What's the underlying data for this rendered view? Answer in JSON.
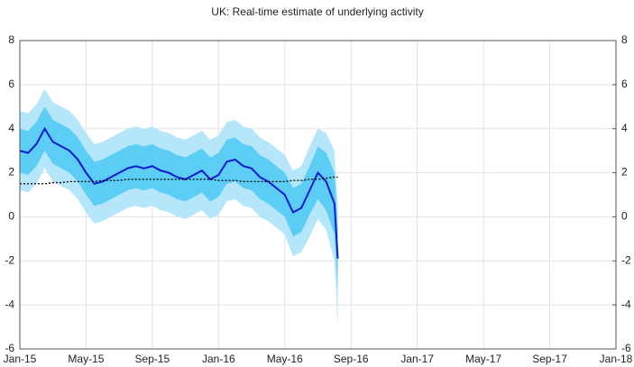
{
  "chart_data": {
    "type": "line",
    "title": "UK: Real-time estimate of underlying activity",
    "x": [
      0,
      0.5,
      1,
      1.5,
      2,
      2.5,
      3,
      3.5,
      4,
      4.5,
      5,
      5.5,
      6,
      6.5,
      7,
      7.5,
      8,
      8.5,
      9,
      9.5,
      10,
      10.5,
      11,
      11.5,
      12,
      12.5,
      13,
      13.5,
      14,
      14.5,
      15,
      15.5,
      16,
      16.5,
      17,
      17.5,
      18,
      18.5,
      19,
      19.2
    ],
    "xlim": [
      0,
      36
    ],
    "xticks": [
      {
        "value": 0,
        "label": "Jan-15"
      },
      {
        "value": 4,
        "label": "May-15"
      },
      {
        "value": 8,
        "label": "Sep-15"
      },
      {
        "value": 12,
        "label": "Jan-16"
      },
      {
        "value": 16,
        "label": "May-16"
      },
      {
        "value": 20,
        "label": "Sep-16"
      },
      {
        "value": 24,
        "label": "Jan-17"
      },
      {
        "value": 28,
        "label": "May-17"
      },
      {
        "value": 32,
        "label": "Sep-17"
      },
      {
        "value": 36,
        "label": "Jan-18"
      }
    ],
    "ylim": [
      -6,
      8
    ],
    "yticks": [
      -6,
      -4,
      -2,
      0,
      2,
      4,
      6,
      8
    ],
    "y2lim": [
      -6,
      8
    ],
    "y2ticks": [
      -6,
      -4,
      -2,
      0,
      2,
      4,
      6,
      8
    ],
    "grid": true,
    "bands": [
      {
        "color": "#b5e6fa",
        "upper": [
          4.8,
          4.7,
          5.1,
          5.8,
          5.2,
          5.0,
          4.8,
          4.4,
          3.8,
          3.3,
          3.4,
          3.6,
          3.8,
          4.0,
          4.1,
          4.0,
          4.1,
          3.9,
          3.8,
          3.6,
          3.5,
          3.7,
          3.9,
          3.5,
          3.7,
          4.3,
          4.4,
          4.1,
          4.0,
          3.6,
          3.4,
          3.1,
          2.8,
          2.1,
          2.3,
          3.2,
          4.0,
          3.8,
          3.0,
          0.5
        ],
        "lower": [
          1.2,
          1.1,
          1.5,
          2.2,
          1.6,
          1.4,
          1.2,
          0.8,
          0.2,
          -0.3,
          -0.2,
          0.0,
          0.2,
          0.4,
          0.5,
          0.4,
          0.5,
          0.3,
          0.2,
          0.0,
          -0.1,
          0.1,
          0.3,
          -0.1,
          0.1,
          0.7,
          0.8,
          0.5,
          0.4,
          0.0,
          -0.2,
          -0.5,
          -0.8,
          -1.8,
          -1.6,
          -0.9,
          -0.1,
          -0.6,
          -2.0,
          -4.9
        ]
      },
      {
        "color": "#5ccdf5",
        "upper": [
          4.0,
          3.9,
          4.3,
          5.0,
          4.4,
          4.2,
          4.0,
          3.6,
          3.0,
          2.5,
          2.6,
          2.8,
          3.0,
          3.2,
          3.3,
          3.2,
          3.3,
          3.1,
          3.0,
          2.8,
          2.7,
          2.9,
          3.1,
          2.7,
          2.9,
          3.5,
          3.6,
          3.3,
          3.2,
          2.8,
          2.6,
          2.3,
          2.0,
          1.3,
          1.5,
          2.3,
          3.2,
          2.9,
          2.0,
          -0.5
        ],
        "lower": [
          2.0,
          1.9,
          2.3,
          3.0,
          2.4,
          2.2,
          2.0,
          1.6,
          1.0,
          0.5,
          0.6,
          0.8,
          1.0,
          1.2,
          1.3,
          1.2,
          1.3,
          1.1,
          1.0,
          0.8,
          0.7,
          0.9,
          1.1,
          0.7,
          0.9,
          1.5,
          1.6,
          1.3,
          1.2,
          0.8,
          0.6,
          0.3,
          0.0,
          -0.9,
          -0.7,
          0.1,
          0.8,
          0.3,
          -0.8,
          -3.3
        ]
      }
    ],
    "series": [
      {
        "color": "#0a1ad1",
        "style": "solid",
        "values": [
          3.0,
          2.9,
          3.3,
          4.0,
          3.4,
          3.2,
          3.0,
          2.6,
          2.0,
          1.5,
          1.6,
          1.8,
          2.0,
          2.2,
          2.3,
          2.2,
          2.3,
          2.1,
          2.0,
          1.8,
          1.7,
          1.9,
          2.1,
          1.7,
          1.9,
          2.5,
          2.6,
          2.3,
          2.2,
          1.8,
          1.6,
          1.3,
          1.0,
          0.2,
          0.4,
          1.2,
          2.0,
          1.6,
          0.6,
          -1.9
        ]
      },
      {
        "color": "#000000",
        "style": "dotted",
        "values": [
          1.5,
          1.5,
          1.5,
          1.5,
          1.55,
          1.55,
          1.6,
          1.6,
          1.6,
          1.6,
          1.65,
          1.65,
          1.65,
          1.7,
          1.7,
          1.7,
          1.7,
          1.7,
          1.7,
          1.7,
          1.7,
          1.7,
          1.7,
          1.7,
          1.65,
          1.65,
          1.65,
          1.6,
          1.6,
          1.6,
          1.6,
          1.6,
          1.6,
          1.65,
          1.65,
          1.7,
          1.7,
          1.75,
          1.8,
          1.8
        ]
      }
    ]
  }
}
